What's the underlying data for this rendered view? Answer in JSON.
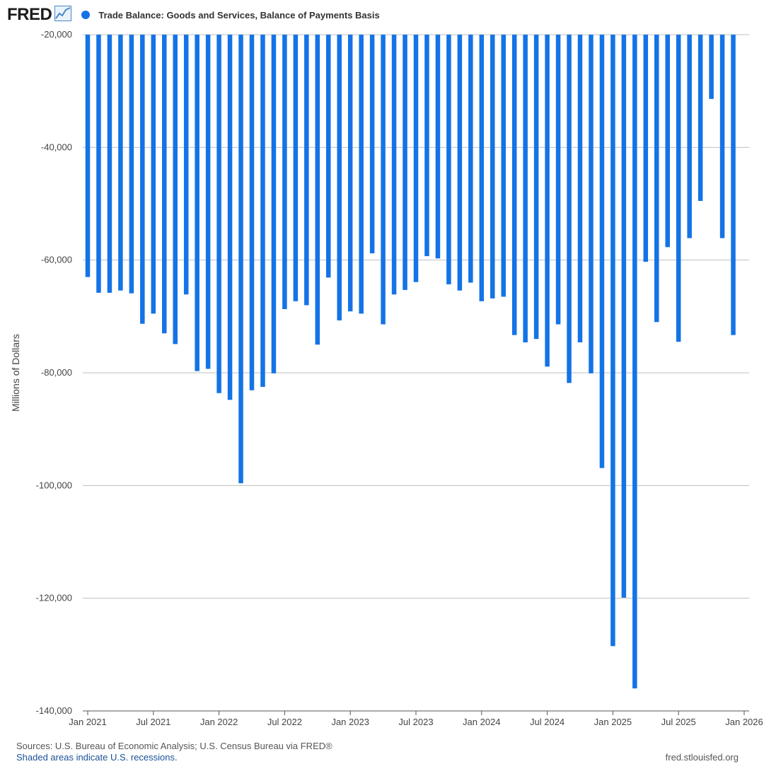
{
  "header": {
    "logo_text": "FRED",
    "logo_icon": "line-chart-icon",
    "legend_label": "Trade Balance: Goods and Services, Balance of Payments Basis"
  },
  "colors": {
    "bar": "#1473e6",
    "legend_dot": "#1473e6",
    "grid": "#bfbfbf",
    "logo_icon": "#4a86c8"
  },
  "chart_data": {
    "type": "bar",
    "ylabel": "Millions of Dollars",
    "ylim": [
      -140000,
      -20000
    ],
    "yticks": [
      -20000,
      -40000,
      -60000,
      -80000,
      -100000,
      -120000,
      -140000
    ],
    "ytick_labels": [
      "-20,000",
      "-40,000",
      "-60,000",
      "-80,000",
      "-100,000",
      "-120,000",
      "-140,000"
    ],
    "xlim": [
      "2021-01",
      "2026-01"
    ],
    "xticks": [
      "2021-01",
      "2021-07",
      "2022-01",
      "2022-07",
      "2023-01",
      "2023-07",
      "2024-01",
      "2024-07",
      "2025-01",
      "2025-07",
      "2026-01"
    ],
    "xtick_labels": [
      "Jan 2021",
      "Jul 2021",
      "Jan 2022",
      "Jul 2022",
      "Jan 2023",
      "Jul 2023",
      "Jan 2024",
      "Jul 2024",
      "Jan 2025",
      "Jul 2025",
      "Jan 2026"
    ],
    "grid": true,
    "legend_position": "top-left",
    "series": [
      {
        "name": "Trade Balance: Goods and Services, Balance of Payments Basis",
        "x": [
          "2021-01",
          "2021-02",
          "2021-03",
          "2021-04",
          "2021-05",
          "2021-06",
          "2021-07",
          "2021-08",
          "2021-09",
          "2021-10",
          "2021-11",
          "2021-12",
          "2022-01",
          "2022-02",
          "2022-03",
          "2022-04",
          "2022-05",
          "2022-06",
          "2022-07",
          "2022-08",
          "2022-09",
          "2022-10",
          "2022-11",
          "2022-12",
          "2023-01",
          "2023-02",
          "2023-03",
          "2023-04",
          "2023-05",
          "2023-06",
          "2023-07",
          "2023-08",
          "2023-09",
          "2023-10",
          "2023-11",
          "2023-12",
          "2024-01",
          "2024-02",
          "2024-03",
          "2024-04",
          "2024-05",
          "2024-06",
          "2024-07",
          "2024-08",
          "2024-09",
          "2024-10",
          "2024-11",
          "2024-12",
          "2025-01",
          "2025-02",
          "2025-03",
          "2025-04",
          "2025-05",
          "2025-06",
          "2025-07",
          "2025-08",
          "2025-09",
          "2025-10",
          "2025-11",
          "2025-12"
        ],
        "values": [
          -63000,
          -65800,
          -65800,
          -65400,
          -65900,
          -71300,
          -69500,
          -73000,
          -74900,
          -66100,
          -79700,
          -79300,
          -83600,
          -84800,
          -99600,
          -83100,
          -82500,
          -80100,
          -68700,
          -67300,
          -68000,
          -75000,
          -63100,
          -70700,
          -69100,
          -69500,
          -58800,
          -71400,
          -66100,
          -65300,
          -63900,
          -59300,
          -59700,
          -64300,
          -65400,
          -64000,
          -67300,
          -66800,
          -66500,
          -73300,
          -74600,
          -74000,
          -78900,
          -71400,
          -81800,
          -74600,
          -80100,
          -96900,
          -128500,
          -119900,
          -136000,
          -60300,
          -71000,
          -57700,
          -74500,
          -56100,
          -49500,
          -31400,
          -56100,
          -73300
        ]
      }
    ]
  },
  "footer": {
    "sources": "Sources: U.S. Bureau of Economic Analysis; U.S. Census Bureau via FRED®",
    "note": "Shaded areas indicate U.S. recessions.",
    "site": "fred.stlouisfed.org"
  }
}
